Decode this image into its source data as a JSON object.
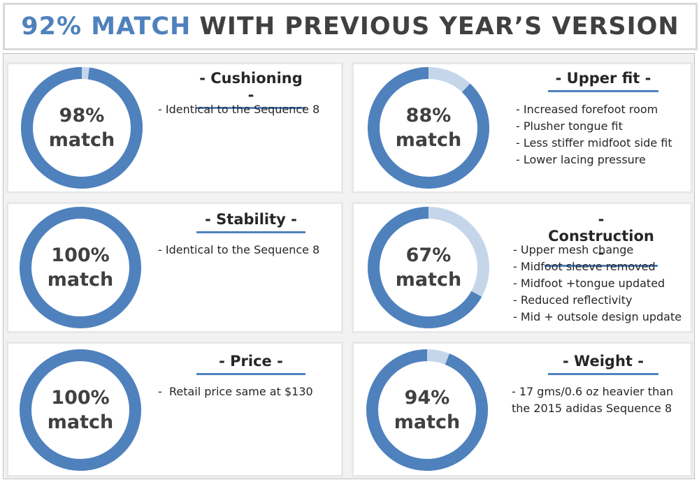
{
  "title": {
    "accent": "92% MATCH",
    "rest": "WITH PREVIOUS YEAR’S VERSION"
  },
  "colors": {
    "accent": "#4f81bd",
    "track": "#c5d6ea",
    "text": "#404040"
  },
  "chart_data": [
    {
      "type": "donut",
      "title": "- Cushioning -",
      "value": 98,
      "percent_label": "98%",
      "label": "match",
      "notes": [
        "- Identical to the Sequence 8"
      ]
    },
    {
      "type": "donut",
      "title": "- Upper fit -",
      "value": 88,
      "percent_label": "88%",
      "label": "match",
      "notes": [
        "- Increased forefoot room",
        "- Plusher tongue fit",
        "- Less stiffer midfoot side fit",
        "- Lower lacing pressure"
      ]
    },
    {
      "type": "donut",
      "title": "- Stability -",
      "value": 100,
      "percent_label": "100%",
      "label": "match",
      "notes": [
        "- Identical to the Sequence 8"
      ]
    },
    {
      "type": "donut",
      "title": "- Construction -",
      "value": 67,
      "percent_label": "67%",
      "label": "match",
      "notes": [
        "- Upper mesh change",
        "- Midfoot sleeve removed",
        "- Midfoot +tongue updated",
        "- Reduced reflectivity",
        "- Mid + outsole design update"
      ]
    },
    {
      "type": "donut",
      "title": "- Price -",
      "value": 100,
      "percent_label": "100%",
      "label": "match",
      "notes": [
        "-  Retail price same at $130"
      ]
    },
    {
      "type": "donut",
      "title": "- Weight -",
      "value": 94,
      "percent_label": "94%",
      "label": "match",
      "notes": [
        "- 17 gms/0.6 oz heavier than",
        "the 2015 adidas Sequence 8"
      ]
    }
  ]
}
